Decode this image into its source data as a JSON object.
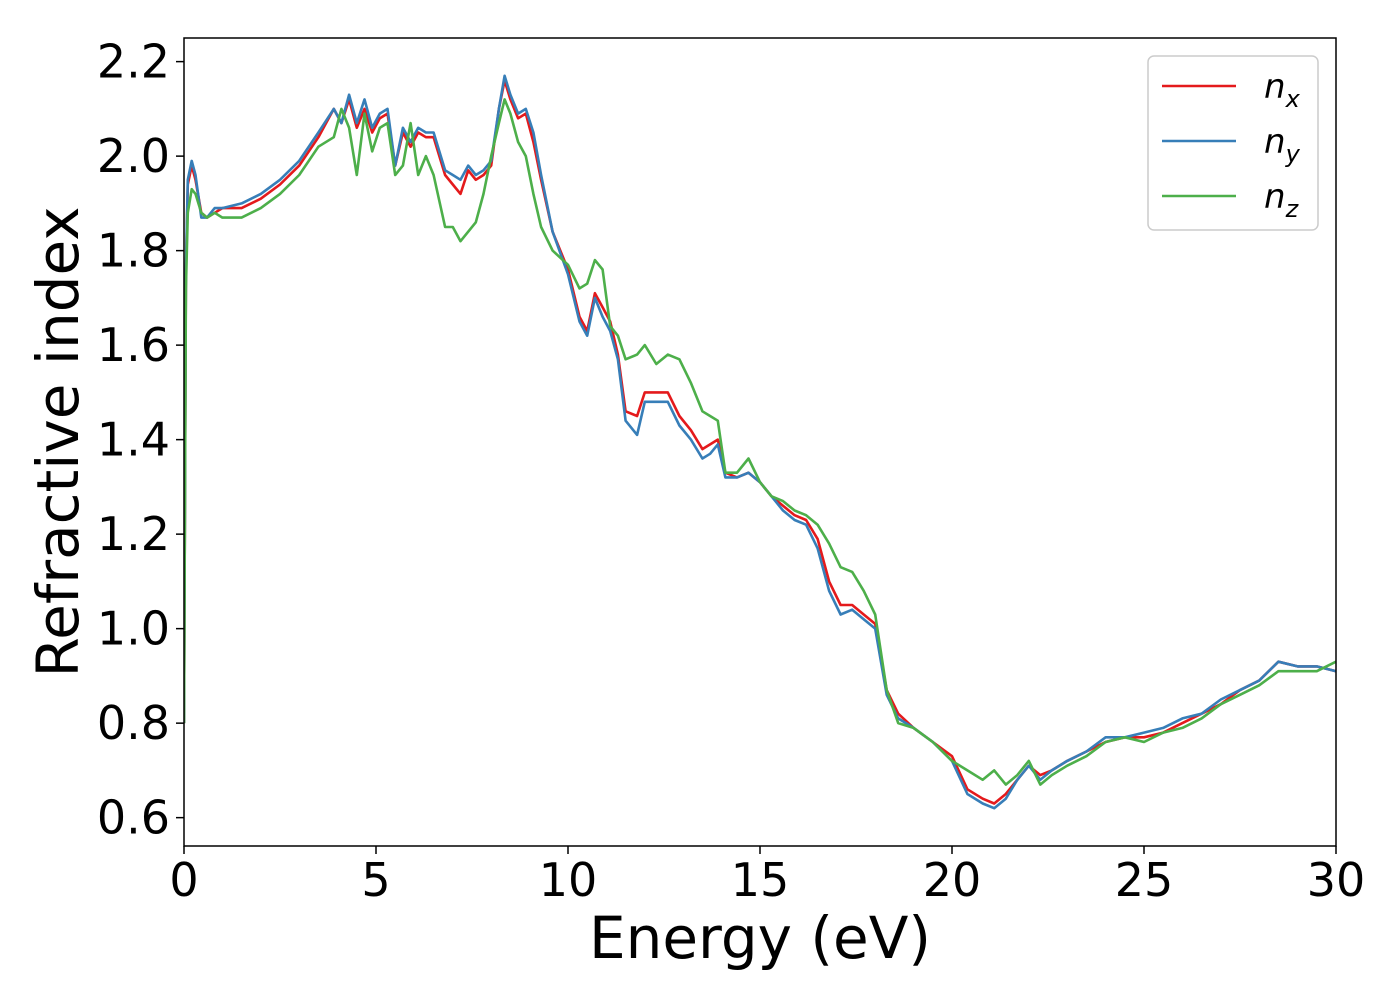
{
  "chart_data": {
    "type": "line",
    "xlabel": "Energy (eV)",
    "ylabel": "Refractive index",
    "xlim": [
      0,
      30
    ],
    "ylim": [
      0.54,
      2.25
    ],
    "xticks": [
      0,
      5,
      10,
      15,
      20,
      25,
      30
    ],
    "xtick_labels": [
      "0",
      "5",
      "10",
      "15",
      "20",
      "25",
      "30"
    ],
    "yticks": [
      0.6,
      0.8,
      1.0,
      1.2,
      1.4,
      1.6,
      1.8,
      2.0,
      2.2
    ],
    "ytick_labels": [
      "0.6",
      "0.8",
      "1.0",
      "1.2",
      "1.4",
      "1.6",
      "1.8",
      "2.0",
      "2.2"
    ],
    "grid": false,
    "legend_position": "top-right",
    "series": [
      {
        "name": "n",
        "subscript": "x",
        "color": "#e41a1c",
        "x": [
          0.0,
          0.05,
          0.1,
          0.2,
          0.3,
          0.45,
          0.6,
          0.8,
          1.0,
          1.5,
          2.0,
          2.5,
          3.0,
          3.5,
          3.9,
          4.1,
          4.3,
          4.5,
          4.7,
          4.9,
          5.1,
          5.3,
          5.5,
          5.7,
          5.9,
          6.1,
          6.3,
          6.5,
          6.8,
          7.0,
          7.2,
          7.4,
          7.6,
          7.8,
          8.0,
          8.2,
          8.35,
          8.5,
          8.7,
          8.9,
          9.1,
          9.3,
          9.6,
          10.0,
          10.3,
          10.5,
          10.7,
          10.9,
          11.1,
          11.3,
          11.5,
          11.8,
          12.0,
          12.3,
          12.6,
          12.9,
          13.2,
          13.5,
          13.7,
          13.9,
          14.1,
          14.4,
          14.7,
          15.0,
          15.3,
          15.6,
          15.9,
          16.2,
          16.5,
          16.8,
          17.1,
          17.4,
          17.7,
          18.0,
          18.3,
          18.6,
          19.0,
          19.5,
          20.0,
          20.4,
          20.8,
          21.1,
          21.4,
          21.7,
          22.0,
          22.3,
          22.6,
          23.0,
          23.5,
          24.0,
          24.5,
          25.0,
          25.5,
          26.0,
          26.5,
          27.0,
          27.5,
          28.0,
          28.5,
          29.0,
          29.5,
          30.0
        ],
        "values": [
          0.8,
          1.75,
          1.94,
          1.98,
          1.95,
          1.88,
          1.87,
          1.88,
          1.89,
          1.89,
          1.91,
          1.94,
          1.98,
          2.04,
          2.1,
          2.07,
          2.12,
          2.06,
          2.1,
          2.05,
          2.08,
          2.09,
          1.98,
          2.05,
          2.02,
          2.05,
          2.04,
          2.04,
          1.96,
          1.94,
          1.92,
          1.97,
          1.95,
          1.96,
          1.98,
          2.1,
          2.16,
          2.12,
          2.08,
          2.09,
          2.03,
          1.95,
          1.84,
          1.76,
          1.66,
          1.63,
          1.71,
          1.68,
          1.65,
          1.58,
          1.46,
          1.45,
          1.5,
          1.5,
          1.5,
          1.45,
          1.42,
          1.38,
          1.39,
          1.4,
          1.33,
          1.32,
          1.33,
          1.31,
          1.28,
          1.26,
          1.24,
          1.23,
          1.19,
          1.1,
          1.05,
          1.05,
          1.03,
          1.01,
          0.87,
          0.82,
          0.79,
          0.76,
          0.73,
          0.66,
          0.64,
          0.63,
          0.65,
          0.68,
          0.71,
          0.69,
          0.7,
          0.72,
          0.74,
          0.76,
          0.77,
          0.77,
          0.78,
          0.8,
          0.82,
          0.84,
          0.87,
          0.89,
          0.93,
          0.92,
          0.92,
          0.91
        ]
      },
      {
        "name": "n",
        "subscript": "y",
        "color": "#377eb8",
        "x": [
          0.0,
          0.05,
          0.1,
          0.2,
          0.3,
          0.45,
          0.6,
          0.8,
          1.0,
          1.5,
          2.0,
          2.5,
          3.0,
          3.5,
          3.9,
          4.1,
          4.3,
          4.5,
          4.7,
          4.9,
          5.1,
          5.3,
          5.5,
          5.7,
          5.9,
          6.1,
          6.3,
          6.5,
          6.8,
          7.0,
          7.2,
          7.4,
          7.6,
          7.8,
          8.0,
          8.2,
          8.35,
          8.5,
          8.7,
          8.9,
          9.1,
          9.3,
          9.6,
          10.0,
          10.3,
          10.5,
          10.7,
          10.9,
          11.1,
          11.3,
          11.5,
          11.8,
          12.0,
          12.3,
          12.6,
          12.9,
          13.2,
          13.5,
          13.7,
          13.9,
          14.1,
          14.4,
          14.7,
          15.0,
          15.3,
          15.6,
          15.9,
          16.2,
          16.5,
          16.8,
          17.1,
          17.4,
          17.7,
          18.0,
          18.3,
          18.6,
          19.0,
          19.5,
          20.0,
          20.4,
          20.8,
          21.1,
          21.4,
          21.7,
          22.0,
          22.3,
          22.6,
          23.0,
          23.5,
          24.0,
          24.5,
          25.0,
          25.5,
          26.0,
          26.5,
          27.0,
          27.5,
          28.0,
          28.5,
          29.0,
          29.5,
          30.0
        ],
        "values": [
          0.8,
          1.76,
          1.95,
          1.99,
          1.96,
          1.87,
          1.87,
          1.89,
          1.89,
          1.9,
          1.92,
          1.95,
          1.99,
          2.05,
          2.1,
          2.07,
          2.13,
          2.07,
          2.12,
          2.06,
          2.09,
          2.1,
          1.98,
          2.06,
          2.03,
          2.06,
          2.05,
          2.05,
          1.97,
          1.96,
          1.95,
          1.98,
          1.96,
          1.97,
          1.99,
          2.1,
          2.17,
          2.13,
          2.09,
          2.1,
          2.05,
          1.96,
          1.84,
          1.75,
          1.65,
          1.62,
          1.7,
          1.66,
          1.63,
          1.57,
          1.44,
          1.41,
          1.48,
          1.48,
          1.48,
          1.43,
          1.4,
          1.36,
          1.37,
          1.39,
          1.32,
          1.32,
          1.33,
          1.31,
          1.28,
          1.25,
          1.23,
          1.22,
          1.17,
          1.08,
          1.03,
          1.04,
          1.02,
          1.0,
          0.86,
          0.81,
          0.79,
          0.76,
          0.72,
          0.65,
          0.63,
          0.62,
          0.64,
          0.68,
          0.71,
          0.68,
          0.7,
          0.72,
          0.74,
          0.77,
          0.77,
          0.78,
          0.79,
          0.81,
          0.82,
          0.85,
          0.87,
          0.89,
          0.93,
          0.92,
          0.92,
          0.91
        ]
      },
      {
        "name": "n",
        "subscript": "z",
        "color": "#4daf4a",
        "x": [
          0.0,
          0.05,
          0.1,
          0.2,
          0.3,
          0.45,
          0.6,
          0.8,
          1.0,
          1.5,
          2.0,
          2.5,
          3.0,
          3.5,
          3.9,
          4.1,
          4.3,
          4.5,
          4.7,
          4.9,
          5.1,
          5.3,
          5.5,
          5.7,
          5.9,
          6.1,
          6.3,
          6.5,
          6.8,
          7.0,
          7.2,
          7.4,
          7.6,
          7.8,
          8.0,
          8.2,
          8.35,
          8.5,
          8.7,
          8.9,
          9.1,
          9.3,
          9.6,
          10.0,
          10.3,
          10.5,
          10.7,
          10.9,
          11.1,
          11.3,
          11.5,
          11.8,
          12.0,
          12.3,
          12.6,
          12.9,
          13.2,
          13.5,
          13.7,
          13.9,
          14.1,
          14.4,
          14.7,
          15.0,
          15.3,
          15.6,
          15.9,
          16.2,
          16.5,
          16.8,
          17.1,
          17.4,
          17.7,
          18.0,
          18.3,
          18.6,
          19.0,
          19.5,
          20.0,
          20.4,
          20.8,
          21.1,
          21.4,
          21.7,
          22.0,
          22.3,
          22.6,
          23.0,
          23.5,
          24.0,
          24.5,
          25.0,
          25.5,
          26.0,
          26.5,
          27.0,
          27.5,
          28.0,
          28.5,
          29.0,
          29.5,
          30.0
        ],
        "values": [
          0.8,
          1.72,
          1.88,
          1.93,
          1.92,
          1.88,
          1.87,
          1.88,
          1.87,
          1.87,
          1.89,
          1.92,
          1.96,
          2.02,
          2.04,
          2.1,
          2.06,
          1.96,
          2.09,
          2.01,
          2.06,
          2.07,
          1.96,
          1.98,
          2.07,
          1.96,
          2.0,
          1.96,
          1.85,
          1.85,
          1.82,
          1.84,
          1.86,
          1.92,
          2.0,
          2.07,
          2.12,
          2.09,
          2.03,
          2.0,
          1.92,
          1.85,
          1.8,
          1.77,
          1.72,
          1.73,
          1.78,
          1.76,
          1.64,
          1.62,
          1.57,
          1.58,
          1.6,
          1.56,
          1.58,
          1.57,
          1.52,
          1.46,
          1.45,
          1.44,
          1.33,
          1.33,
          1.36,
          1.31,
          1.28,
          1.27,
          1.25,
          1.24,
          1.22,
          1.18,
          1.13,
          1.12,
          1.08,
          1.03,
          0.87,
          0.8,
          0.79,
          0.76,
          0.72,
          0.7,
          0.68,
          0.7,
          0.67,
          0.69,
          0.72,
          0.67,
          0.69,
          0.71,
          0.73,
          0.76,
          0.77,
          0.76,
          0.78,
          0.79,
          0.81,
          0.84,
          0.86,
          0.88,
          0.91,
          0.91,
          0.91,
          0.93
        ]
      }
    ]
  }
}
